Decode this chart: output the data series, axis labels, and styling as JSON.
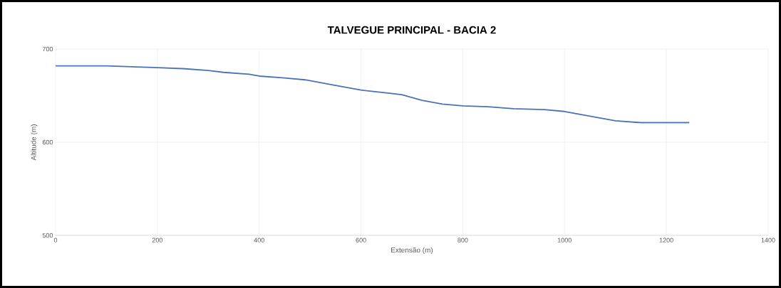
{
  "chart_data": {
    "type": "line",
    "title": "TALVEGUE PRINCIPAL - BACIA 2",
    "xlabel": "Extensão (m)",
    "ylabel": "Altitude (m)",
    "x": [
      0,
      100,
      200,
      250,
      300,
      330,
      380,
      400,
      450,
      490,
      550,
      600,
      650,
      680,
      720,
      760,
      800,
      850,
      900,
      960,
      1000,
      1050,
      1100,
      1150,
      1200,
      1245
    ],
    "series": [
      {
        "color": "#4a72b8",
        "values": [
          682,
          682,
          680,
          679,
          677,
          675,
          673,
          671,
          669,
          667,
          661,
          656,
          653,
          651,
          645,
          641,
          639,
          638,
          636,
          635,
          633,
          628,
          623,
          621,
          621,
          621
        ]
      }
    ],
    "xlim": [
      0,
      1400
    ],
    "ylim": [
      500,
      700
    ],
    "xticks": [
      0,
      200,
      400,
      600,
      800,
      1000,
      1200,
      1400
    ],
    "yticks": [
      500,
      600,
      700
    ],
    "grid": true,
    "marker": "none",
    "line_style": "solid"
  }
}
